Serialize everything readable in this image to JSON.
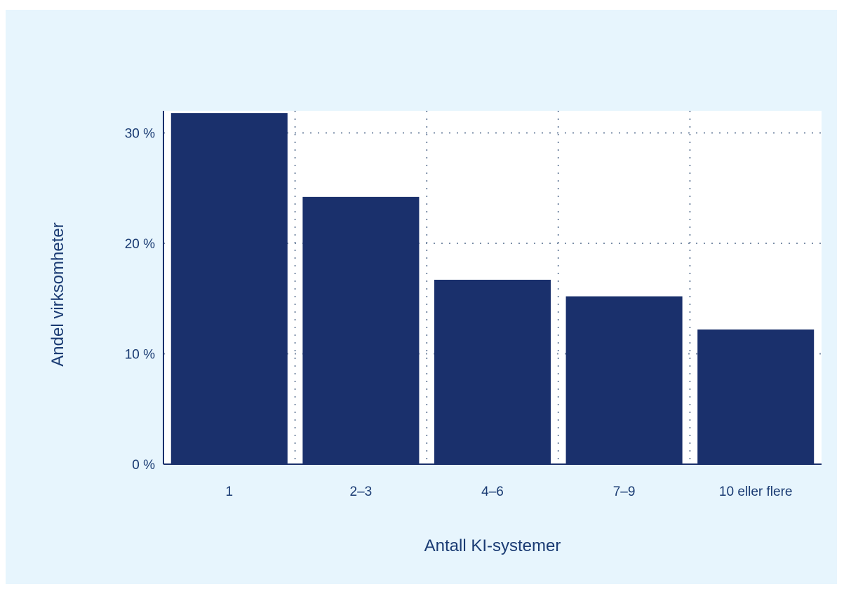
{
  "chart_data": {
    "type": "bar",
    "title": "",
    "xlabel": "Antall KI-systemer",
    "ylabel": "Andel virksomheter",
    "categories": [
      "1",
      "2–3",
      "4–6",
      "7–9",
      "10 eller flere"
    ],
    "values": [
      31.8,
      24.2,
      16.7,
      15.2,
      12.2
    ],
    "ylim": [
      0,
      32
    ],
    "yticks": [
      0,
      10,
      20,
      30
    ],
    "ytick_labels": [
      "0 %",
      "10 %",
      "20 %",
      "30 %"
    ],
    "grid": true,
    "colors": {
      "bar": "#1a306c",
      "grid": "#7d8fa8",
      "axis": "#1a306c",
      "plot_bg": "#ffffff",
      "outer_bg": "#e7f5fd",
      "text": "#1a3b73"
    }
  }
}
